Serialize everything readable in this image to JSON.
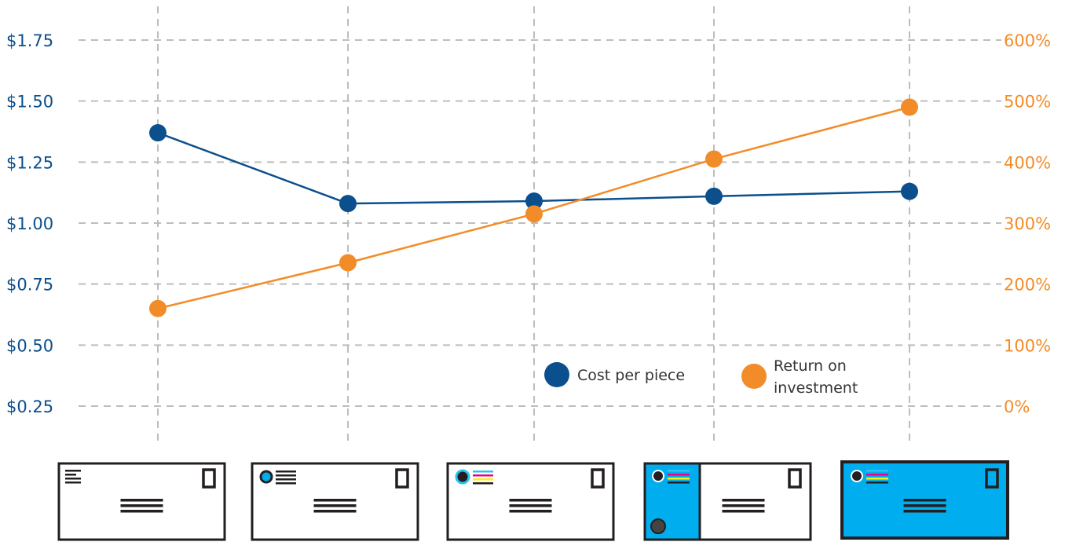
{
  "colors": {
    "cost": "#0b4f8c",
    "roi": "#f28c28",
    "grid": "#bdbdbd",
    "envelope_blue": "#00aeef",
    "envelope_black": "#231f20",
    "cyan": "#29c4f2",
    "magenta": "#ec008c",
    "yellow": "#fff200"
  },
  "chart_data": {
    "type": "line",
    "categories": [
      "plain envelope",
      "envelope with one spot color",
      "envelope with full color logo",
      "envelope with full color panel",
      "full color envelope"
    ],
    "series": [
      {
        "name": "Cost per piece",
        "axis": "left",
        "values": [
          1.37,
          1.08,
          1.09,
          1.11,
          1.13
        ]
      },
      {
        "name": "Return on investment",
        "axis": "right",
        "values": [
          160,
          235,
          315,
          405,
          490
        ]
      }
    ],
    "y_left": {
      "ticks": [
        "$1.75",
        "$1.50",
        "$1.25",
        "$1.00",
        "$0.75",
        "$0.50",
        "$0.25"
      ],
      "tick_values": [
        1.75,
        1.5,
        1.25,
        1.0,
        0.75,
        0.5,
        0.25
      ],
      "range": [
        0.25,
        1.75
      ]
    },
    "y_right": {
      "ticks": [
        "600%",
        "500%",
        "400%",
        "300%",
        "200%",
        "100%",
        "0%"
      ],
      "tick_values": [
        600,
        500,
        400,
        300,
        200,
        100,
        0
      ],
      "range": [
        0,
        600
      ]
    },
    "grid": true,
    "legend": {
      "placement": "bottom-right",
      "items": [
        {
          "series": "Cost per piece",
          "lines": [
            "Cost per piece"
          ]
        },
        {
          "series": "Return on investment",
          "lines": [
            "Return on",
            "investment"
          ]
        }
      ]
    }
  }
}
